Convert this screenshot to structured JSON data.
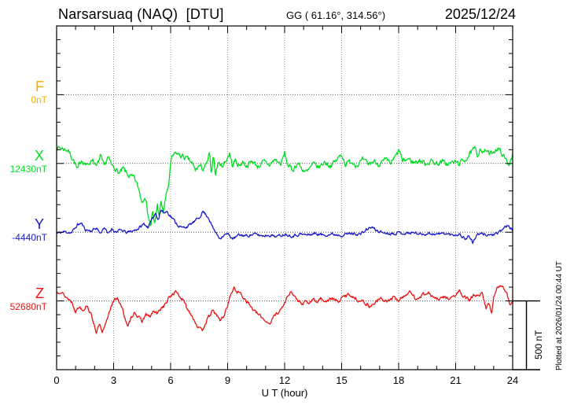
{
  "header": {
    "title": "Narsarsuaq (NAQ)  [DTU]",
    "coords": "GG ( 61.16°, 314.56°)",
    "date": "2025/12/24"
  },
  "footer_note": "Plotted at 2026/01/24 00:44 UT",
  "chart_data": {
    "type": "line",
    "title": "Narsarsuaq (NAQ) [DTU] magnetogram",
    "xlabel": "U T (hour)",
    "x_units": "UT hours",
    "x_range": [
      0,
      24
    ],
    "x_ticks": [
      "0",
      "3",
      "6",
      "9",
      "12",
      "15",
      "18",
      "21",
      "24"
    ],
    "x_minor_tick_every_hours": 1,
    "grid": "dotted vertical gridlines every 3 h; dotted horizontal baseline per component",
    "y_minor_tick_nT": 100,
    "y_major_tick_nT": 500,
    "scale_bar": {
      "label": "500 nT",
      "nT": 500
    },
    "series_units": "nT offset relative to the component baseline value",
    "components": [
      {
        "label": "F",
        "value_label": "0nT",
        "color": "#FFAA00",
        "baseline_slot": 5,
        "series": null
      },
      {
        "label": "X",
        "value_label": "12430nT",
        "color": "#00DD22",
        "baseline_slot": 10,
        "noise_nT": 16,
        "seed": 7,
        "series": [
          [
            0,
            120
          ],
          [
            0.3,
            109
          ],
          [
            0.6,
            97
          ],
          [
            0.9,
            23
          ],
          [
            1.1,
            -51
          ],
          [
            1.3,
            29
          ],
          [
            1.6,
            -17
          ],
          [
            1.9,
            34
          ],
          [
            2.1,
            -29
          ],
          [
            2.3,
            51
          ],
          [
            2.5,
            -23
          ],
          [
            2.7,
            46
          ],
          [
            2.9,
            -17
          ],
          [
            3.1,
            -34
          ],
          [
            3.3,
            -74
          ],
          [
            3.5,
            -40
          ],
          [
            3.8,
            -91
          ],
          [
            4.1,
            -109
          ],
          [
            4.3,
            -177
          ],
          [
            4.5,
            -280
          ],
          [
            4.65,
            -223
          ],
          [
            4.8,
            -360
          ],
          [
            4.95,
            -463
          ],
          [
            5.05,
            -349
          ],
          [
            5.15,
            -452
          ],
          [
            5.3,
            -303
          ],
          [
            5.4,
            -383
          ],
          [
            5.5,
            -280
          ],
          [
            5.6,
            -360
          ],
          [
            5.75,
            -246
          ],
          [
            5.9,
            -149
          ],
          [
            6,
            -6
          ],
          [
            6.1,
            51
          ],
          [
            6.3,
            74
          ],
          [
            6.5,
            57
          ],
          [
            6.8,
            40
          ],
          [
            7.1,
            6
          ],
          [
            7.3,
            -51
          ],
          [
            7.5,
            -17
          ],
          [
            7.7,
            -40
          ],
          [
            7.9,
            -6
          ],
          [
            8.05,
            74
          ],
          [
            8.15,
            -109
          ],
          [
            8.25,
            80
          ],
          [
            8.35,
            -74
          ],
          [
            8.5,
            6
          ],
          [
            8.7,
            -17
          ],
          [
            8.9,
            17
          ],
          [
            9.1,
            74
          ],
          [
            9.25,
            -17
          ],
          [
            9.4,
            23
          ],
          [
            9.6,
            -17
          ],
          [
            9.8,
            11
          ],
          [
            10,
            -17
          ],
          [
            10.3,
            17
          ],
          [
            10.6,
            -23
          ],
          [
            10.9,
            11
          ],
          [
            11.2,
            -11
          ],
          [
            11.5,
            29
          ],
          [
            11.8,
            -6
          ],
          [
            12,
            74
          ],
          [
            12.15,
            -6
          ],
          [
            12.4,
            -51
          ],
          [
            12.7,
            6
          ],
          [
            12.9,
            -40
          ],
          [
            13.2,
            -63
          ],
          [
            13.5,
            -6
          ],
          [
            13.8,
            -29
          ],
          [
            14.1,
            11
          ],
          [
            14.4,
            -17
          ],
          [
            14.7,
            17
          ],
          [
            15,
            69
          ],
          [
            15.2,
            -6
          ],
          [
            15.5,
            17
          ],
          [
            15.8,
            -11
          ],
          [
            16.1,
            23
          ],
          [
            16.4,
            -6
          ],
          [
            16.7,
            17
          ],
          [
            17,
            -6
          ],
          [
            17.3,
            23
          ],
          [
            17.6,
            0
          ],
          [
            17.9,
            63
          ],
          [
            18.05,
            97
          ],
          [
            18.2,
            11
          ],
          [
            18.5,
            34
          ],
          [
            18.8,
            6
          ],
          [
            19.1,
            23
          ],
          [
            19.4,
            0
          ],
          [
            19.7,
            17
          ],
          [
            20,
            0
          ],
          [
            20.3,
            11
          ],
          [
            20.6,
            -6
          ],
          [
            20.9,
            11
          ],
          [
            21.2,
            0
          ],
          [
            21.5,
            29
          ],
          [
            21.8,
            74
          ],
          [
            22,
            109
          ],
          [
            22.15,
            51
          ],
          [
            22.3,
            120
          ],
          [
            22.45,
            74
          ],
          [
            22.6,
            97
          ],
          [
            22.8,
            63
          ],
          [
            23,
            91
          ],
          [
            23.2,
            109
          ],
          [
            23.4,
            80
          ],
          [
            23.6,
            34
          ],
          [
            23.8,
            -6
          ],
          [
            24,
            74
          ]
        ]
      },
      {
        "label": "Y",
        "value_label": "-4440nT",
        "color": "#1818CC",
        "baseline_slot": 15,
        "noise_nT": 9,
        "seed": 11,
        "series": [
          [
            0,
            -9
          ],
          [
            0.4,
            3
          ],
          [
            0.8,
            -3
          ],
          [
            1.1,
            54
          ],
          [
            1.3,
            66
          ],
          [
            1.5,
            20
          ],
          [
            1.8,
            9
          ],
          [
            2.1,
            31
          ],
          [
            2.3,
            -9
          ],
          [
            2.5,
            37
          ],
          [
            2.7,
            -14
          ],
          [
            2.9,
            26
          ],
          [
            3.1,
            3
          ],
          [
            3.4,
            14
          ],
          [
            3.7,
            -3
          ],
          [
            4,
            9
          ],
          [
            4.3,
            26
          ],
          [
            4.6,
            60
          ],
          [
            4.8,
            37
          ],
          [
            5,
            83
          ],
          [
            5.2,
            140
          ],
          [
            5.35,
            94
          ],
          [
            5.5,
            163
          ],
          [
            5.65,
            140
          ],
          [
            5.8,
            152
          ],
          [
            6,
            117
          ],
          [
            6.2,
            83
          ],
          [
            6.4,
            49
          ],
          [
            6.6,
            31
          ],
          [
            6.9,
            43
          ],
          [
            7.2,
            71
          ],
          [
            7.5,
            106
          ],
          [
            7.7,
            152
          ],
          [
            7.85,
            129
          ],
          [
            8,
            106
          ],
          [
            8.2,
            37
          ],
          [
            8.4,
            -9
          ],
          [
            8.6,
            -43
          ],
          [
            8.8,
            -20
          ],
          [
            9,
            -14
          ],
          [
            9.3,
            -49
          ],
          [
            9.6,
            -20
          ],
          [
            10,
            -26
          ],
          [
            10.4,
            -14
          ],
          [
            10.8,
            -26
          ],
          [
            11.2,
            -20
          ],
          [
            11.6,
            -31
          ],
          [
            12,
            -14
          ],
          [
            12.4,
            -26
          ],
          [
            12.8,
            -14
          ],
          [
            13.2,
            -20
          ],
          [
            13.6,
            -9
          ],
          [
            14,
            -20
          ],
          [
            14.5,
            -14
          ],
          [
            15,
            -20
          ],
          [
            15.5,
            -9
          ],
          [
            16,
            -14
          ],
          [
            16.4,
            26
          ],
          [
            16.6,
            37
          ],
          [
            16.8,
            14
          ],
          [
            17.2,
            -3
          ],
          [
            17.6,
            -9
          ],
          [
            18,
            -3
          ],
          [
            18.4,
            -9
          ],
          [
            18.8,
            -3
          ],
          [
            19.2,
            -14
          ],
          [
            19.6,
            -9
          ],
          [
            20,
            -14
          ],
          [
            20.4,
            -9
          ],
          [
            20.8,
            -20
          ],
          [
            21.2,
            -14
          ],
          [
            21.5,
            -49
          ],
          [
            21.7,
            -26
          ],
          [
            21.9,
            -77
          ],
          [
            22.1,
            -20
          ],
          [
            22.4,
            -14
          ],
          [
            22.8,
            -20
          ],
          [
            23.2,
            -14
          ],
          [
            23.5,
            26
          ],
          [
            23.7,
            49
          ],
          [
            23.9,
            26
          ],
          [
            24,
            14
          ]
        ]
      },
      {
        "label": "Z",
        "value_label": "52680nT",
        "color": "#EE1111",
        "baseline_slot": 20,
        "noise_nT": 11,
        "seed": 13,
        "series": [
          [
            0,
            63
          ],
          [
            0.2,
            74
          ],
          [
            0.4,
            40
          ],
          [
            0.6,
            17
          ],
          [
            0.8,
            -6
          ],
          [
            1,
            -74
          ],
          [
            1.2,
            -40
          ],
          [
            1.4,
            -63
          ],
          [
            1.6,
            -29
          ],
          [
            1.8,
            -97
          ],
          [
            2,
            -177
          ],
          [
            2.1,
            -234
          ],
          [
            2.25,
            -166
          ],
          [
            2.4,
            -240
          ],
          [
            2.55,
            -183
          ],
          [
            2.7,
            -109
          ],
          [
            2.85,
            -40
          ],
          [
            3,
            -6
          ],
          [
            3.2,
            29
          ],
          [
            3.4,
            -40
          ],
          [
            3.6,
            -120
          ],
          [
            3.75,
            -200
          ],
          [
            3.9,
            -132
          ],
          [
            4.1,
            -74
          ],
          [
            4.3,
            -120
          ],
          [
            4.5,
            -149
          ],
          [
            4.7,
            -97
          ],
          [
            4.9,
            -120
          ],
          [
            5.1,
            -74
          ],
          [
            5.3,
            -97
          ],
          [
            5.5,
            -51
          ],
          [
            5.7,
            -29
          ],
          [
            5.9,
            17
          ],
          [
            6.1,
            51
          ],
          [
            6.3,
            69
          ],
          [
            6.5,
            29
          ],
          [
            6.7,
            -6
          ],
          [
            6.9,
            -63
          ],
          [
            7.1,
            -97
          ],
          [
            7.3,
            -154
          ],
          [
            7.5,
            -200
          ],
          [
            7.65,
            -223
          ],
          [
            7.8,
            -166
          ],
          [
            8,
            -120
          ],
          [
            8.2,
            -74
          ],
          [
            8.4,
            -97
          ],
          [
            8.6,
            -143
          ],
          [
            8.8,
            -109
          ],
          [
            9,
            -29
          ],
          [
            9.2,
            63
          ],
          [
            9.35,
            91
          ],
          [
            9.5,
            69
          ],
          [
            9.7,
            51
          ],
          [
            9.9,
            17
          ],
          [
            10.1,
            -17
          ],
          [
            10.4,
            -74
          ],
          [
            10.7,
            -109
          ],
          [
            11,
            -143
          ],
          [
            11.2,
            -166
          ],
          [
            11.4,
            -120
          ],
          [
            11.6,
            -86
          ],
          [
            11.8,
            -63
          ],
          [
            12,
            -17
          ],
          [
            12.2,
            51
          ],
          [
            12.35,
            69
          ],
          [
            12.5,
            29
          ],
          [
            12.7,
            6
          ],
          [
            12.9,
            -29
          ],
          [
            13.1,
            -6
          ],
          [
            13.3,
            -17
          ],
          [
            13.5,
            11
          ],
          [
            13.7,
            -6
          ],
          [
            13.9,
            17
          ],
          [
            14.2,
            0
          ],
          [
            14.5,
            17
          ],
          [
            14.8,
            -6
          ],
          [
            15.1,
            29
          ],
          [
            15.4,
            51
          ],
          [
            15.6,
            29
          ],
          [
            15.9,
            6
          ],
          [
            16.2,
            -11
          ],
          [
            16.5,
            -40
          ],
          [
            16.8,
            -6
          ],
          [
            17.1,
            17
          ],
          [
            17.4,
            -6
          ],
          [
            17.7,
            23
          ],
          [
            18,
            6
          ],
          [
            18.3,
            40
          ],
          [
            18.6,
            63
          ],
          [
            18.9,
            17
          ],
          [
            19.2,
            40
          ],
          [
            19.5,
            63
          ],
          [
            19.8,
            29
          ],
          [
            20.1,
            6
          ],
          [
            20.4,
            29
          ],
          [
            20.7,
            17
          ],
          [
            21,
            40
          ],
          [
            21.2,
            74
          ],
          [
            21.4,
            29
          ],
          [
            21.7,
            6
          ],
          [
            22,
            46
          ],
          [
            22.2,
            29
          ],
          [
            22.4,
            51
          ],
          [
            22.6,
            -63
          ],
          [
            22.75,
            -6
          ],
          [
            22.9,
            -86
          ],
          [
            23,
            17
          ],
          [
            23.2,
            97
          ],
          [
            23.35,
            120
          ],
          [
            23.5,
            97
          ],
          [
            23.7,
            63
          ],
          [
            23.85,
            -29
          ],
          [
            24,
            0
          ]
        ]
      }
    ]
  }
}
